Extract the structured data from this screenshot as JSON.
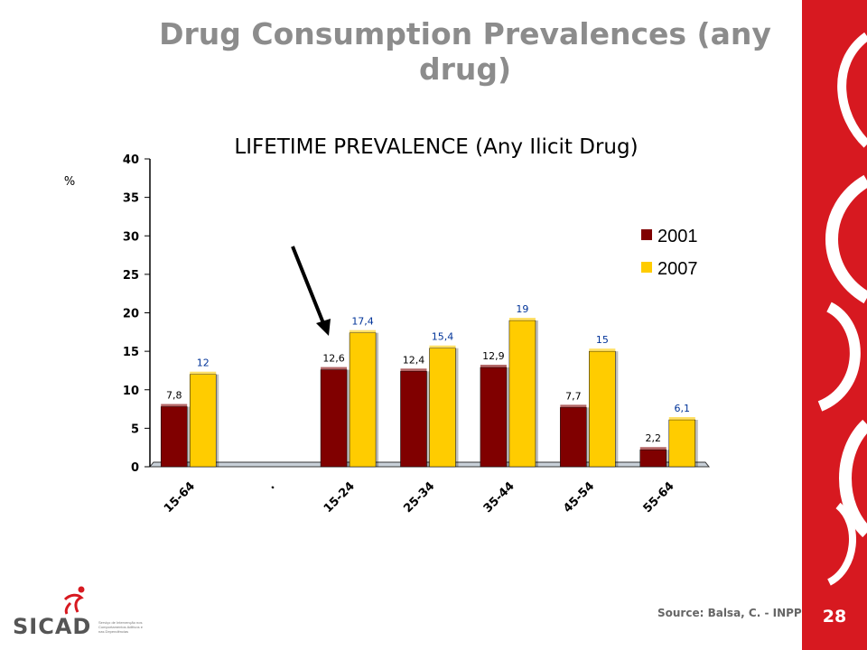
{
  "slide": {
    "title": "Drug Consumption Prevalences (any drug)",
    "page_number": "28",
    "source": "Source: Balsa, C. - INPP",
    "logo_text": "SICAD",
    "logo_subtext": "Serviço de Intervenção nos Comportamentos Aditivos e nas Dependências",
    "accent_color": "#d71920"
  },
  "chart_data": {
    "type": "bar",
    "title": "LIFETIME PREVALENCE (Any Ilicit Drug)",
    "ylabel": "%",
    "ylim": [
      0,
      40
    ],
    "yticks": [
      0,
      5,
      10,
      15,
      20,
      25,
      30,
      35,
      40
    ],
    "categories": [
      "15-64",
      ".",
      "15-24",
      "25-34",
      "35-44",
      "45-54",
      "55-64"
    ],
    "series": [
      {
        "name": "2001",
        "color": "#800000",
        "label_color": "#000000",
        "values": [
          7.8,
          null,
          12.6,
          12.4,
          12.9,
          7.7,
          2.2
        ],
        "labels": [
          "7,8",
          "",
          "12,6",
          "12,4",
          "12,9",
          "7,7",
          "2,2"
        ]
      },
      {
        "name": "2007",
        "color": "#ffcc00",
        "label_color": "#003399",
        "values": [
          12,
          null,
          17.4,
          15.4,
          19,
          15,
          6.1
        ],
        "labels": [
          "12",
          "",
          "17,4",
          "15,4",
          "19",
          "15",
          "6,1"
        ]
      }
    ],
    "legend_position": "right",
    "annotation": "arrow-pointing-to-15-24-2001"
  }
}
